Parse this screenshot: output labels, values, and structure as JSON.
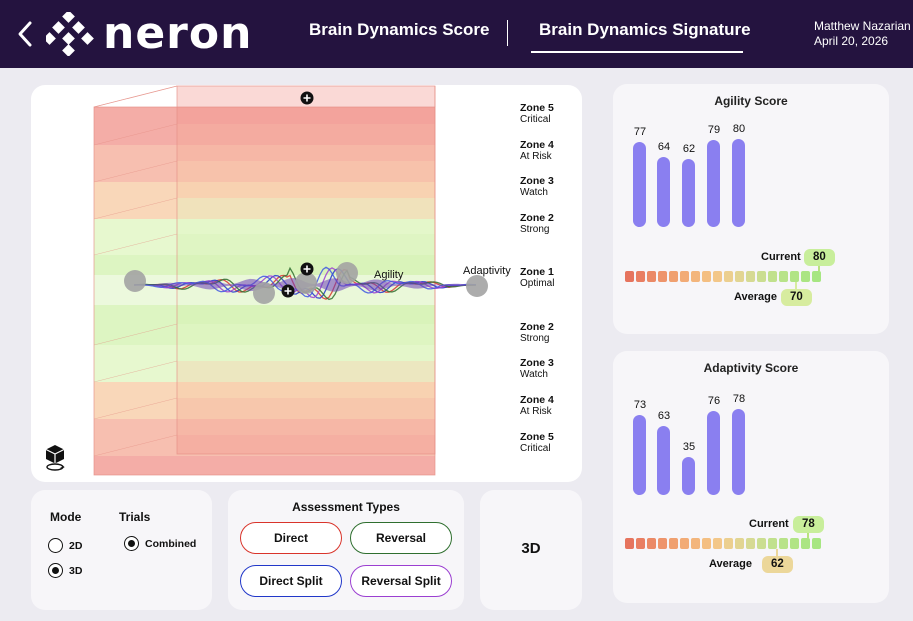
{
  "header": {
    "brand": "neron",
    "tabs": [
      {
        "label": "Brain Dynamics Score",
        "active": false
      },
      {
        "label": "Brain Dynamics Signature",
        "active": true
      }
    ],
    "user_name": "Matthew Nazarian",
    "date": "April 20, 2026"
  },
  "chart": {
    "zones_top": [
      {
        "name": "Zone 5",
        "status": "Critical",
        "color": "#f0928a"
      },
      {
        "name": "Zone 4",
        "status": "At Risk",
        "color": "#f4aa95"
      },
      {
        "name": "Zone 3",
        "status": "Watch",
        "color": "#f7c9a2"
      },
      {
        "name": "Zone 2",
        "status": "Strong",
        "color": "#dff5bf"
      },
      {
        "name": "Zone 1",
        "status": "Optimal",
        "color": "#d2f1ad"
      }
    ],
    "zones_bottom": [
      {
        "name": "Zone 2",
        "status": "Strong",
        "color": "#dff5bf"
      },
      {
        "name": "Zone 3",
        "status": "Watch",
        "color": "#f7c9a2"
      },
      {
        "name": "Zone 4",
        "status": "At Risk",
        "color": "#f4aa95"
      },
      {
        "name": "Zone 5",
        "status": "Critical",
        "color": "#f0928a"
      }
    ],
    "agility_label": "Agility",
    "adaptivity_label": "Adaptivity"
  },
  "mode": {
    "title": "Mode",
    "options": [
      {
        "label": "2D",
        "selected": false
      },
      {
        "label": "3D",
        "selected": true
      }
    ]
  },
  "trials": {
    "title": "Trials",
    "options": [
      {
        "label": "Combined",
        "selected": true
      }
    ]
  },
  "assessment": {
    "title": "Assessment Types",
    "buttons": [
      {
        "label": "Direct",
        "color": "#d9342b"
      },
      {
        "label": "Reversal",
        "color": "#2f6f2f"
      },
      {
        "label": "Direct Split",
        "color": "#2137c9"
      },
      {
        "label": "Reversal Split",
        "color": "#9b3fd1"
      }
    ]
  },
  "view": {
    "label": "3D"
  },
  "agility": {
    "title": "Agility Score",
    "bars": [
      77,
      64,
      62,
      79,
      80
    ],
    "current_label": "Current",
    "current": "80",
    "average_label": "Average",
    "average": "70"
  },
  "adaptivity": {
    "title": "Adaptivity Score",
    "bars": [
      73,
      63,
      35,
      76,
      78
    ],
    "current_label": "Current",
    "current": "78",
    "average_label": "Average",
    "average": "62"
  },
  "scale_colors": [
    "#e6745e",
    "#e97e62",
    "#eb8966",
    "#ee946b",
    "#f0a070",
    "#f2ab76",
    "#f3b57c",
    "#f4bf82",
    "#f3c789",
    "#eccf8f",
    "#e2d592",
    "#d6da93",
    "#cbde91",
    "#c1e18d",
    "#b8e389",
    "#b1e485",
    "#abe583",
    "#a7e682"
  ],
  "colors": {
    "header_bg": "#24133f",
    "bar": "#8a7ff0",
    "current_pill": "#c8ee9b",
    "average_pill_agility": "#d7ec9f",
    "average_pill_adapt": "#ecd79a"
  }
}
